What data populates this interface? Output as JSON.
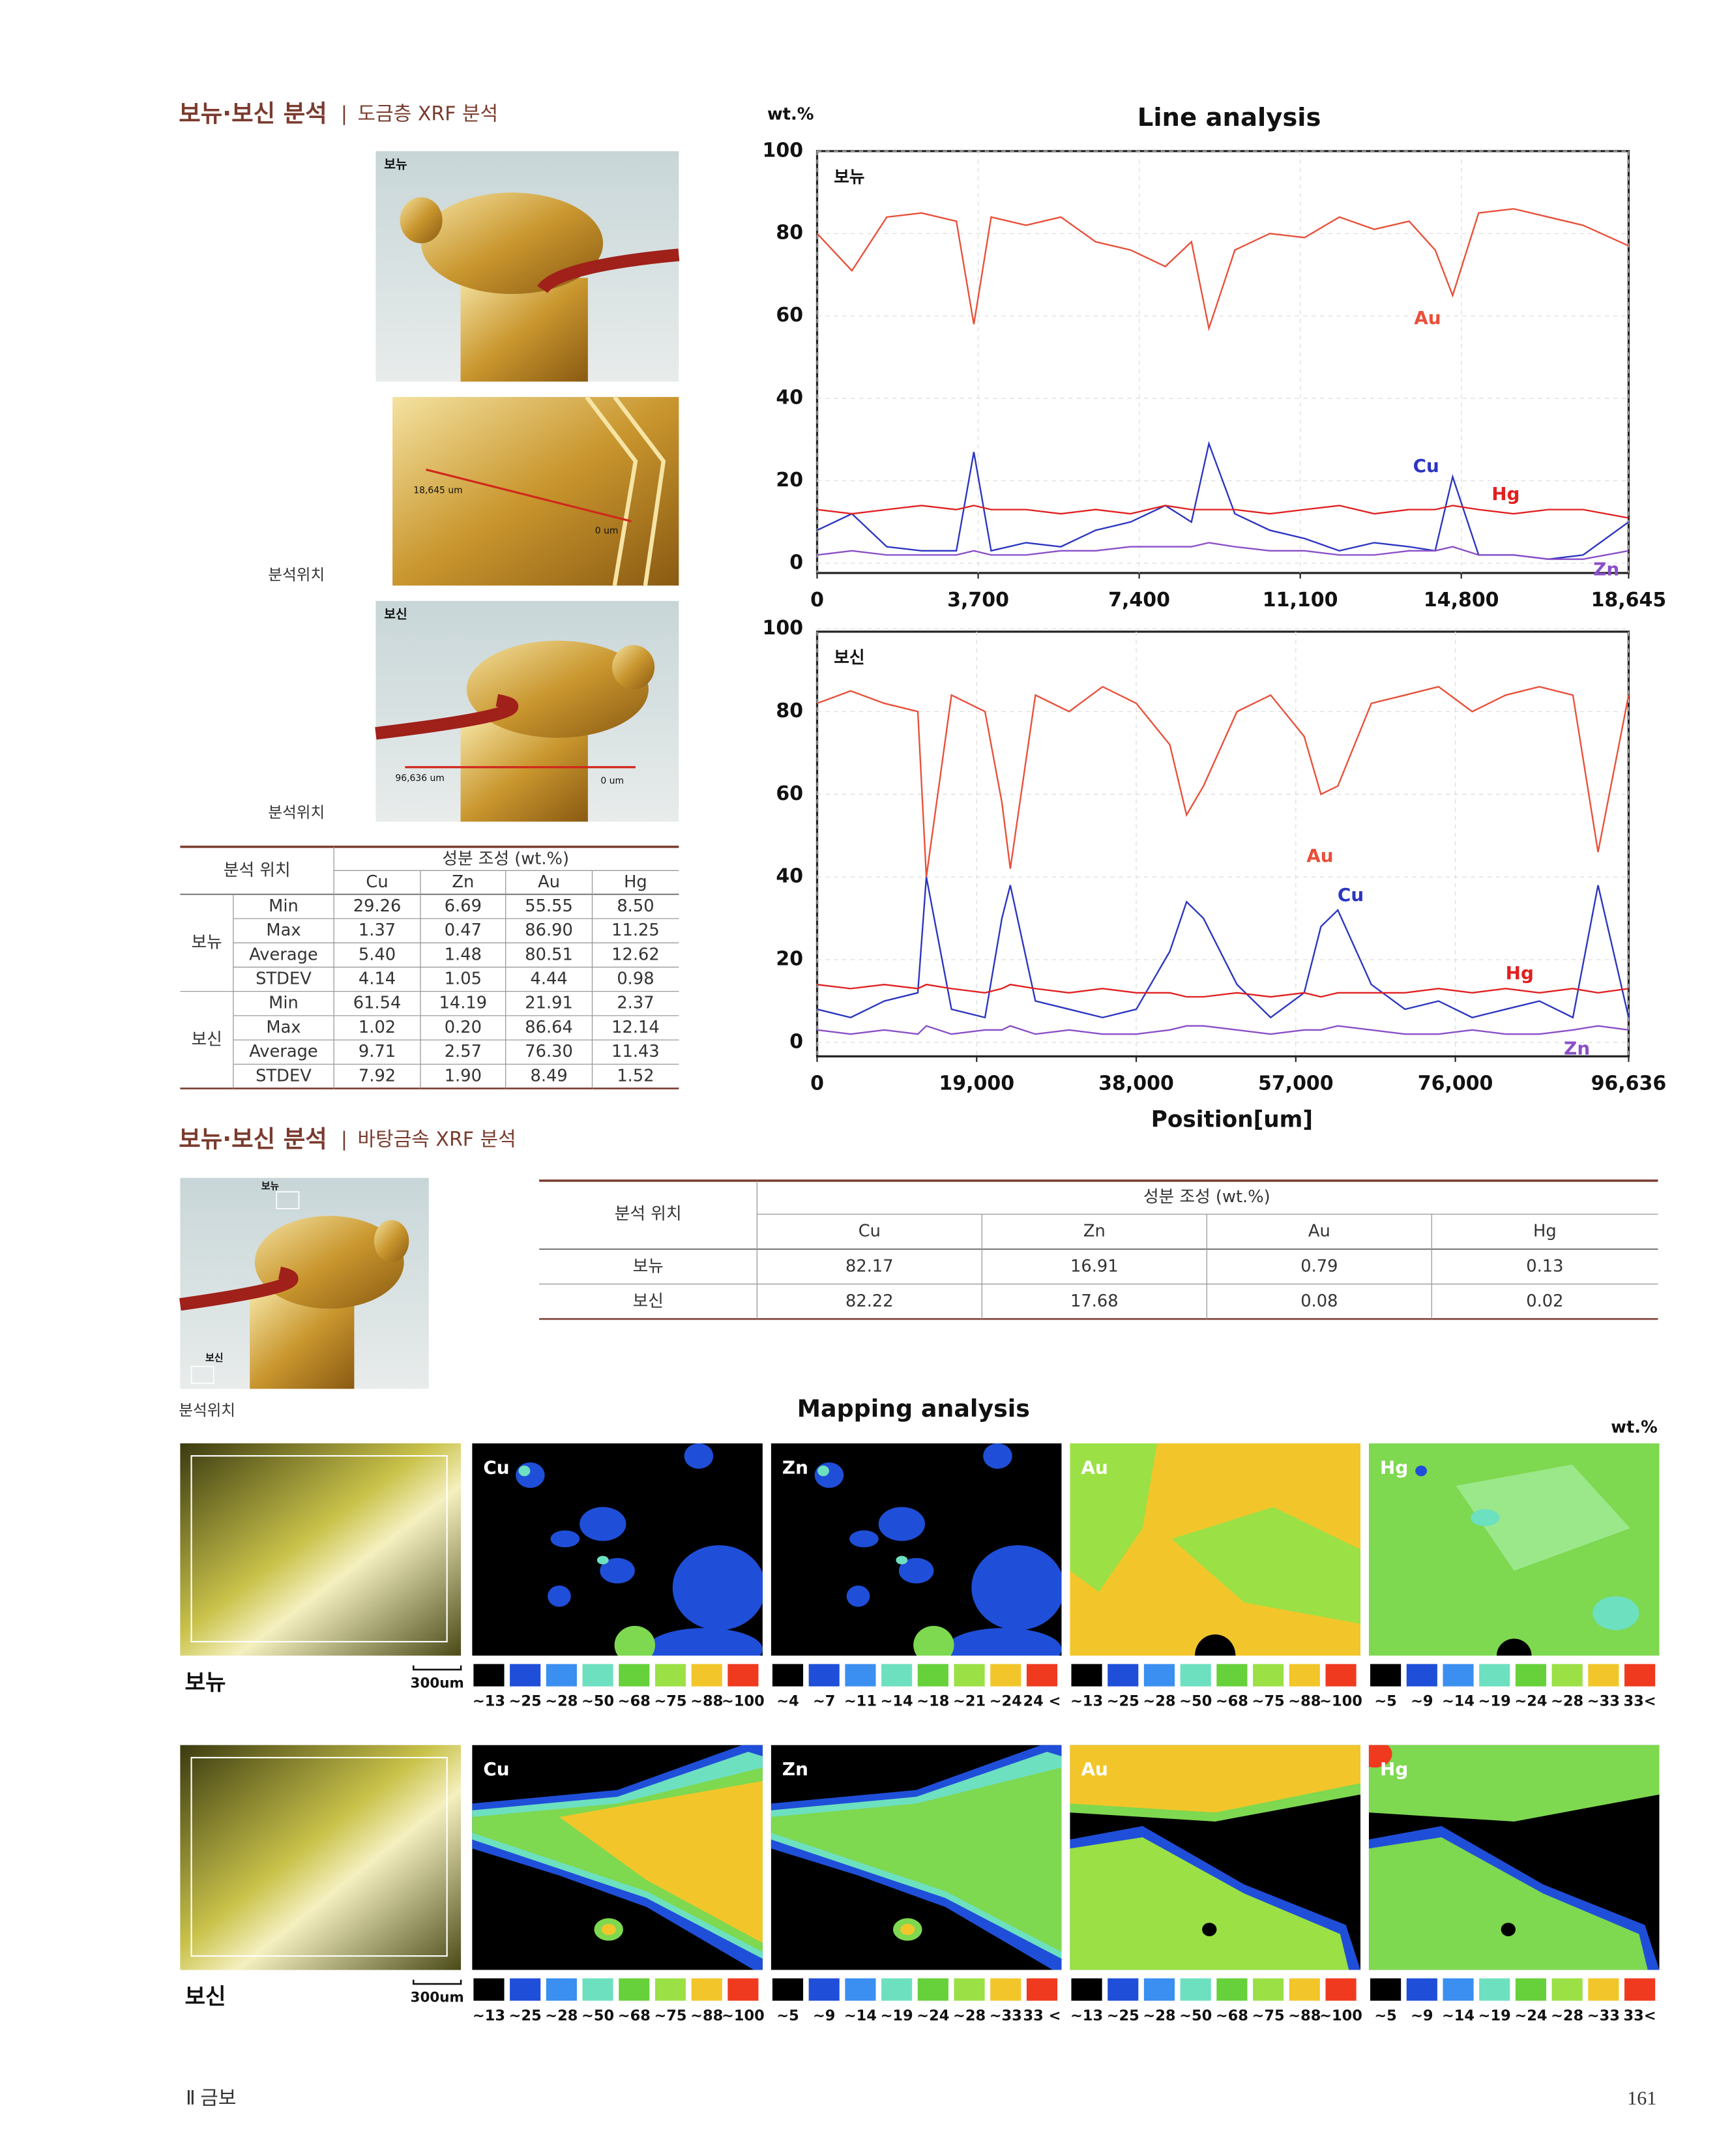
{
  "section1": {
    "title": "보뉴·보신 분석",
    "divider": "|",
    "subtitle": "도금층 XRF 분석"
  },
  "photos": [
    {
      "label": "보뉴"
    },
    {
      "scale_start": "18,645 um",
      "scale_end": "0 um"
    },
    {
      "label": "보신",
      "scale_start": "96,636 um",
      "scale_end": "0 um"
    }
  ],
  "photo_captions": [
    "분석위치",
    "분석위치"
  ],
  "table1": {
    "header_position": "분석 위치",
    "header_composition": "성분 조성 (wt.%)",
    "columns": [
      "Cu",
      "Zn",
      "Au",
      "Hg"
    ],
    "groups": [
      {
        "name": "보뉴",
        "rows": [
          {
            "stat": "Min",
            "cells": [
              "29.26",
              "6.69",
              "55.55",
              "8.50"
            ]
          },
          {
            "stat": "Max",
            "cells": [
              "1.37",
              "0.47",
              "86.90",
              "11.25"
            ]
          },
          {
            "stat": "Average",
            "cells": [
              "5.40",
              "1.48",
              "80.51",
              "12.62"
            ]
          },
          {
            "stat": "STDEV",
            "cells": [
              "4.14",
              "1.05",
              "4.44",
              "0.98"
            ]
          }
        ]
      },
      {
        "name": "보신",
        "rows": [
          {
            "stat": "Min",
            "cells": [
              "61.54",
              "14.19",
              "21.91",
              "2.37"
            ]
          },
          {
            "stat": "Max",
            "cells": [
              "1.02",
              "0.20",
              "86.64",
              "12.14"
            ]
          },
          {
            "stat": "Average",
            "cells": [
              "9.71",
              "2.57",
              "76.30",
              "11.43"
            ]
          },
          {
            "stat": "STDEV",
            "cells": [
              "7.92",
              "1.90",
              "8.49",
              "1.52"
            ]
          }
        ]
      }
    ]
  },
  "chart_data": [
    {
      "type": "line",
      "title": "Line analysis",
      "y_label": "wt.%",
      "panel_label": "보뉴",
      "x": [
        0,
        800,
        1600,
        2400,
        3200,
        3600,
        4000,
        4800,
        5600,
        6400,
        7200,
        8000,
        8600,
        9000,
        9600,
        10400,
        11200,
        12000,
        12800,
        13600,
        14200,
        14600,
        15200,
        16000,
        16800,
        17600,
        18645
      ],
      "xlim": [
        0,
        18645
      ],
      "xticks": [
        0,
        {
          "value": 3700,
          "label": "3,700"
        },
        {
          "value": 7400,
          "label": "7,400"
        },
        {
          "value": 11100,
          "label": "11,100"
        },
        {
          "value": 14800,
          "label": "14,800"
        },
        {
          "value": 18645,
          "label": "18,645"
        }
      ],
      "ylim": [
        0,
        100
      ],
      "yticks": [
        0,
        20,
        40,
        60,
        80,
        100
      ],
      "grid": true,
      "series": [
        {
          "name": "Au",
          "color": "#e8503a",
          "values": [
            80,
            71,
            84,
            85,
            83,
            58,
            84,
            82,
            84,
            78,
            76,
            72,
            78,
            57,
            76,
            80,
            79,
            84,
            81,
            83,
            76,
            65,
            85,
            86,
            84,
            82,
            77
          ]
        },
        {
          "name": "Cu",
          "color": "#2b35c0",
          "values": [
            8,
            12,
            4,
            3,
            3,
            27,
            3,
            5,
            4,
            8,
            10,
            14,
            10,
            29,
            12,
            8,
            6,
            3,
            5,
            4,
            3,
            21,
            2,
            2,
            1,
            2,
            10
          ]
        },
        {
          "name": "Hg",
          "color": "#e02020",
          "values": [
            13,
            12,
            13,
            14,
            13,
            14,
            13,
            13,
            12,
            13,
            12,
            14,
            13,
            13,
            13,
            12,
            13,
            14,
            12,
            13,
            13,
            14,
            13,
            12,
            13,
            13,
            11
          ]
        },
        {
          "name": "Zn",
          "color": "#8a4fc8",
          "values": [
            2,
            3,
            2,
            2,
            2,
            3,
            2,
            2,
            3,
            3,
            4,
            4,
            4,
            5,
            4,
            3,
            3,
            2,
            2,
            3,
            3,
            4,
            2,
            2,
            1,
            1,
            3
          ]
        }
      ]
    },
    {
      "type": "line",
      "x_label": "Position[um]",
      "panel_label": "보신",
      "x": [
        0,
        4000,
        8000,
        12000,
        13000,
        16000,
        20000,
        22000,
        23000,
        26000,
        30000,
        34000,
        38000,
        42000,
        44000,
        46000,
        50000,
        54000,
        58000,
        60000,
        62000,
        66000,
        70000,
        74000,
        78000,
        82000,
        86000,
        90000,
        93000,
        96636
      ],
      "xlim": [
        0,
        96636
      ],
      "xticks": [
        0,
        {
          "value": 19000,
          "label": "19,000"
        },
        {
          "value": 38000,
          "label": "38,000"
        },
        {
          "value": 57000,
          "label": "57,000"
        },
        {
          "value": 76000,
          "label": "76,000"
        },
        {
          "value": 96636,
          "label": "96,636"
        }
      ],
      "ylim": [
        0,
        100
      ],
      "yticks": [
        0,
        20,
        40,
        60,
        80,
        100
      ],
      "grid": true,
      "series": [
        {
          "name": "Au",
          "color": "#e8503a",
          "values": [
            82,
            85,
            82,
            80,
            40,
            84,
            80,
            58,
            42,
            84,
            80,
            86,
            82,
            72,
            55,
            62,
            80,
            84,
            74,
            60,
            62,
            82,
            84,
            86,
            80,
            84,
            86,
            84,
            46,
            84
          ]
        },
        {
          "name": "Cu",
          "color": "#2b35c0",
          "values": [
            8,
            6,
            10,
            12,
            40,
            8,
            6,
            30,
            38,
            10,
            8,
            6,
            8,
            22,
            34,
            30,
            14,
            6,
            12,
            28,
            32,
            14,
            8,
            10,
            6,
            8,
            10,
            6,
            38,
            6
          ]
        },
        {
          "name": "Hg",
          "color": "#e02020",
          "values": [
            14,
            13,
            14,
            13,
            14,
            13,
            12,
            13,
            14,
            13,
            12,
            13,
            12,
            12,
            11,
            11,
            12,
            11,
            12,
            11,
            12,
            12,
            12,
            13,
            12,
            13,
            12,
            13,
            12,
            13
          ]
        },
        {
          "name": "Zn",
          "color": "#8a4fc8",
          "values": [
            3,
            2,
            3,
            2,
            4,
            2,
            3,
            3,
            4,
            2,
            3,
            2,
            2,
            3,
            4,
            4,
            3,
            2,
            3,
            3,
            4,
            3,
            2,
            2,
            3,
            2,
            2,
            3,
            4,
            3
          ]
        }
      ]
    }
  ],
  "section2": {
    "title": "보뉴·보신 분석",
    "divider": "|",
    "subtitle": "바탕금속 XRF 분석"
  },
  "photo2": {
    "label_top": "보뉴",
    "label_bottom": "보신",
    "caption": "분석위치"
  },
  "table2": {
    "header_position": "분석 위치",
    "header_composition": "성분 조성 (wt.%)",
    "columns": [
      "Cu",
      "Zn",
      "Au",
      "Hg"
    ],
    "rows": [
      {
        "position": "보뉴",
        "cells": [
          "82.17",
          "16.91",
          "0.79",
          "0.13"
        ]
      },
      {
        "position": "보신",
        "cells": [
          "82.22",
          "17.68",
          "0.08",
          "0.02"
        ]
      }
    ]
  },
  "mapping": {
    "title": "Mapping analysis",
    "unit": "wt.%",
    "legend_colors": [
      "#000000",
      "#1f4fd8",
      "#3a8ff0",
      "#6de0c0",
      "#66d13a",
      "#9be045",
      "#f2c62a",
      "#f03a20"
    ],
    "rows": [
      {
        "label": "보뉴",
        "scale": "300um",
        "panels": [
          {
            "element": "Cu",
            "scale": [
              "~13",
              "~25",
              "~28",
              "~50",
              "~68",
              "~75",
              "~88",
              "~100"
            ]
          },
          {
            "element": "Zn",
            "scale": [
              "~4",
              "~7",
              "~11",
              "~14",
              "~18",
              "~21",
              "~24",
              "24 <"
            ]
          },
          {
            "element": "Au",
            "scale": [
              "~13",
              "~25",
              "~28",
              "~50",
              "~68",
              "~75",
              "~88",
              "~100"
            ]
          },
          {
            "element": "Hg",
            "scale": [
              "~5",
              "~9",
              "~14",
              "~19",
              "~24",
              "~28",
              "~33",
              "33<"
            ]
          }
        ]
      },
      {
        "label": "보신",
        "scale": "300um",
        "panels": [
          {
            "element": "Cu",
            "scale": [
              "~13",
              "~25",
              "~28",
              "~50",
              "~68",
              "~75",
              "~88",
              "~100"
            ]
          },
          {
            "element": "Zn",
            "scale": [
              "~5",
              "~9",
              "~14",
              "~19",
              "~24",
              "~28",
              "~33",
              "33 <"
            ]
          },
          {
            "element": "Au",
            "scale": [
              "~13",
              "~25",
              "~28",
              "~50",
              "~68",
              "~75",
              "~88",
              "~100"
            ]
          },
          {
            "element": "Hg",
            "scale": [
              "~5",
              "~9",
              "~14",
              "~19",
              "~24",
              "~28",
              "~33",
              "33<"
            ]
          }
        ]
      }
    ]
  },
  "footer": {
    "section": "Ⅱ 금보",
    "page": "161"
  }
}
